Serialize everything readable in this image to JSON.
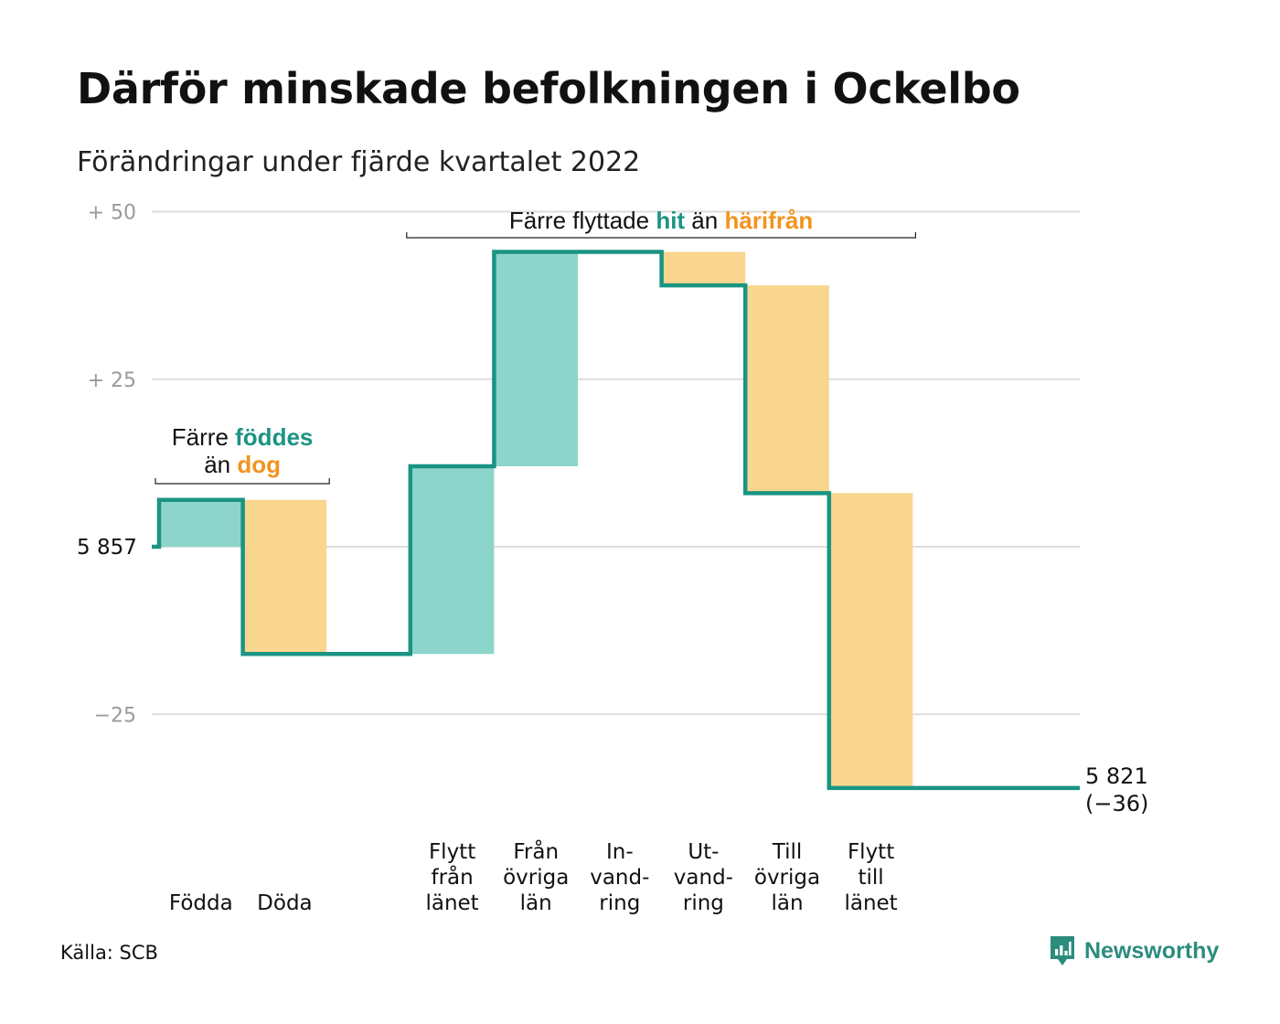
{
  "title": "Därför minskade befolkningen i Ockelbo",
  "subtitle": "Förändringar under fjärde kvartalet 2022",
  "source": "Källa: SCB",
  "brand": "Newsworthy",
  "colors": {
    "inflow": "#8dd5cb",
    "outflow": "#f9d68f",
    "line": "#1a9483",
    "grid": "#dddddd",
    "axis_text": "#9a9a9a",
    "accent_orange": "#f2941e"
  },
  "chart_data": {
    "type": "waterfall",
    "start_label": "5 857",
    "start_value": 5857,
    "end_label": "5 821",
    "end_change_label": "(−36)",
    "end_value": 5821,
    "y_ticks": [
      {
        "value": 50,
        "label": "+ 50"
      },
      {
        "value": 25,
        "label": "+ 25"
      },
      {
        "value": 0,
        "label": "5 857"
      },
      {
        "value": -25,
        "label": "−25"
      }
    ],
    "ylim": [
      -36,
      50
    ],
    "steps": [
      {
        "label": [
          "",
          "",
          "Födda"
        ],
        "change": 7,
        "kind": "in"
      },
      {
        "label": [
          "",
          "",
          "Döda"
        ],
        "change": -23,
        "kind": "out"
      },
      {
        "label": [
          "",
          "",
          ""
        ],
        "change": 0,
        "kind": "none"
      },
      {
        "label": [
          "Flytt",
          "från",
          "länet"
        ],
        "change": 28,
        "kind": "in"
      },
      {
        "label": [
          "Från",
          "övriga",
          "län"
        ],
        "change": 32,
        "kind": "in"
      },
      {
        "label": [
          "In-",
          "vand-",
          "ring"
        ],
        "change": 0,
        "kind": "in"
      },
      {
        "label": [
          "Ut-",
          "vand-",
          "ring"
        ],
        "change": -5,
        "kind": "out"
      },
      {
        "label": [
          "Till",
          "övriga",
          "län"
        ],
        "change": -31,
        "kind": "out"
      },
      {
        "label": [
          "Flytt",
          "till",
          "länet"
        ],
        "change": -44,
        "kind": "out"
      }
    ],
    "annotations": [
      {
        "lines": [
          [
            {
              "text": "Färre ",
              "style": "normal"
            },
            {
              "text": "föddes",
              "style": "green"
            }
          ],
          [
            {
              "text": "än ",
              "style": "normal"
            },
            {
              "text": "dog",
              "style": "orange"
            }
          ]
        ],
        "from_step": 0,
        "to_step": 1
      },
      {
        "lines": [
          [
            {
              "text": "Färre flyttade ",
              "style": "normal"
            },
            {
              "text": "hit",
              "style": "green"
            },
            {
              "text": " än ",
              "style": "normal"
            },
            {
              "text": "härifrån",
              "style": "orange"
            }
          ]
        ],
        "from_step": 3,
        "to_step": 8
      }
    ]
  }
}
